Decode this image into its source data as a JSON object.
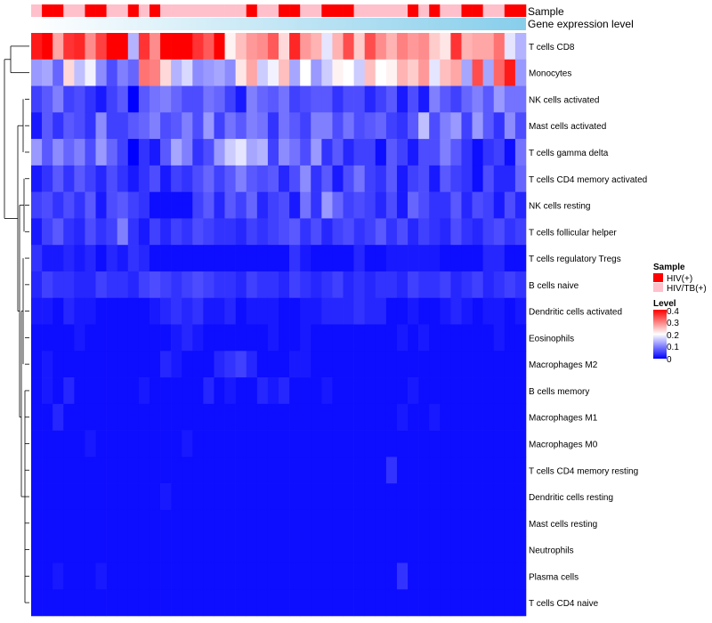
{
  "chart_data": {
    "type": "heatmap",
    "title": "",
    "annotation_rows": [
      "Sample",
      "Gene expression level"
    ],
    "rows": [
      "T cells CD8",
      "Monocytes",
      "NK cells activated",
      "Mast cells activated",
      "T cells gamma delta",
      "T cells CD4 memory activated",
      "NK cells resting",
      "T cells follicular helper",
      "T cells regulatory  Tregs",
      "B cells naive",
      "Dendritic cells activated",
      "Eosinophils",
      "Macrophages M2",
      "B cells memory",
      "Macrophages M1",
      "Macrophages M0",
      "T cells CD4 memory resting",
      "Dendritic cells resting",
      "Mast cells resting",
      "Neutrophils",
      "Plasma cells",
      "T cells CD4 naive"
    ],
    "n_columns": 46,
    "sample_groups": [
      1,
      0,
      0,
      1,
      1,
      0,
      0,
      1,
      1,
      0,
      1,
      0,
      1,
      1,
      1,
      1,
      1,
      1,
      1,
      1,
      0,
      1,
      1,
      0,
      0,
      1,
      1,
      0,
      0,
      0,
      1,
      1,
      1,
      1,
      1,
      0,
      1,
      0,
      1,
      1,
      0,
      0,
      1,
      1,
      0,
      0
    ],
    "values": [
      [
        0.38,
        0.4,
        0.27,
        0.36,
        0.37,
        0.29,
        0.35,
        0.4,
        0.4,
        0.14,
        0.36,
        0.29,
        0.4,
        0.4,
        0.4,
        0.36,
        0.33,
        0.4,
        0.21,
        0.25,
        0.28,
        0.29,
        0.33,
        0.23,
        0.37,
        0.28,
        0.26,
        0.18,
        0.26,
        0.34,
        0.24,
        0.34,
        0.29,
        0.26,
        0.3,
        0.28,
        0.29,
        0.24,
        0.22,
        0.36,
        0.26,
        0.27,
        0.27,
        0.31,
        0.18,
        0.14
      ],
      [
        0.12,
        0.13,
        0.08,
        0.23,
        0.15,
        0.19,
        0.11,
        0.06,
        0.1,
        0.08,
        0.31,
        0.3,
        0.23,
        0.14,
        0.17,
        0.11,
        0.12,
        0.13,
        0.11,
        0.22,
        0.27,
        0.16,
        0.19,
        0.25,
        0.13,
        0.2,
        0.12,
        0.16,
        0.21,
        0.2,
        0.16,
        0.25,
        0.2,
        0.21,
        0.26,
        0.24,
        0.28,
        0.18,
        0.25,
        0.27,
        0.13,
        0.34,
        0.13,
        0.32,
        0.38,
        0.12
      ],
      [
        0.05,
        0.07,
        0.1,
        0.05,
        0.06,
        0.04,
        0.02,
        0.05,
        0.07,
        0.0,
        0.07,
        0.09,
        0.1,
        0.08,
        0.06,
        0.06,
        0.09,
        0.08,
        0.05,
        0.02,
        0.1,
        0.08,
        0.07,
        0.09,
        0.05,
        0.06,
        0.07,
        0.07,
        0.04,
        0.06,
        0.06,
        0.03,
        0.05,
        0.07,
        0.02,
        0.06,
        0.02,
        0.1,
        0.07,
        0.05,
        0.08,
        0.1,
        0.07,
        0.12,
        0.09,
        0.09
      ],
      [
        0.02,
        0.07,
        0.04,
        0.07,
        0.06,
        0.04,
        0.11,
        0.05,
        0.05,
        0.07,
        0.08,
        0.1,
        0.06,
        0.07,
        0.1,
        0.06,
        0.12,
        0.05,
        0.09,
        0.07,
        0.1,
        0.09,
        0.04,
        0.09,
        0.07,
        0.05,
        0.1,
        0.1,
        0.06,
        0.09,
        0.06,
        0.07,
        0.08,
        0.05,
        0.04,
        0.07,
        0.15,
        0.06,
        0.1,
        0.12,
        0.05,
        0.12,
        0.07,
        0.04,
        0.11,
        0.06
      ],
      [
        0.12,
        0.07,
        0.11,
        0.08,
        0.1,
        0.06,
        0.12,
        0.08,
        0.05,
        0.0,
        0.04,
        0.02,
        0.07,
        0.13,
        0.1,
        0.04,
        0.06,
        0.12,
        0.16,
        0.18,
        0.13,
        0.14,
        0.05,
        0.11,
        0.09,
        0.06,
        0.12,
        0.04,
        0.07,
        0.03,
        0.05,
        0.05,
        0.01,
        0.07,
        0.05,
        0.02,
        0.06,
        0.06,
        0.1,
        0.07,
        0.04,
        0.01,
        0.04,
        0.05,
        0.01,
        0.09
      ],
      [
        0.02,
        0.04,
        0.07,
        0.04,
        0.07,
        0.05,
        0.03,
        0.06,
        0.04,
        0.02,
        0.04,
        0.06,
        0.02,
        0.05,
        0.04,
        0.06,
        0.08,
        0.05,
        0.07,
        0.1,
        0.07,
        0.06,
        0.07,
        0.03,
        0.06,
        0.11,
        0.04,
        0.07,
        0.02,
        0.06,
        0.09,
        0.05,
        0.04,
        0.07,
        0.02,
        0.05,
        0.06,
        0.02,
        0.07,
        0.05,
        0.04,
        0.01,
        0.06,
        0.03,
        0.03,
        0.08
      ],
      [
        0.05,
        0.06,
        0.04,
        0.06,
        0.04,
        0.07,
        0.02,
        0.06,
        0.07,
        0.05,
        0.04,
        0.01,
        0.01,
        0.01,
        0.01,
        0.05,
        0.07,
        0.03,
        0.07,
        0.05,
        0.08,
        0.03,
        0.05,
        0.06,
        0.02,
        0.09,
        0.04,
        0.12,
        0.08,
        0.05,
        0.06,
        0.05,
        0.03,
        0.06,
        0.02,
        0.08,
        0.06,
        0.04,
        0.04,
        0.07,
        0.03,
        0.06,
        0.05,
        0.02,
        0.06,
        0.03
      ],
      [
        0.02,
        0.05,
        0.07,
        0.04,
        0.03,
        0.06,
        0.04,
        0.05,
        0.1,
        0.04,
        0.02,
        0.05,
        0.03,
        0.05,
        0.04,
        0.06,
        0.05,
        0.04,
        0.04,
        0.03,
        0.05,
        0.04,
        0.05,
        0.06,
        0.07,
        0.04,
        0.06,
        0.03,
        0.05,
        0.06,
        0.04,
        0.05,
        0.07,
        0.04,
        0.06,
        0.03,
        0.05,
        0.04,
        0.03,
        0.06,
        0.04,
        0.03,
        0.05,
        0.06,
        0.04,
        0.05
      ],
      [
        0.04,
        0.02,
        0.02,
        0.03,
        0.02,
        0.03,
        0.01,
        0.03,
        0.02,
        0.04,
        0.03,
        0.01,
        0.01,
        0.01,
        0.01,
        0.01,
        0.01,
        0.01,
        0.01,
        0.01,
        0.01,
        0.01,
        0.01,
        0.01,
        0.04,
        0.02,
        0.01,
        0.01,
        0.01,
        0.01,
        0.03,
        0.01,
        0.01,
        0.02,
        0.02,
        0.02,
        0.02,
        0.02,
        0.01,
        0.01,
        0.01,
        0.01,
        0.03,
        0.03,
        0.01,
        0.01
      ],
      [
        0.03,
        0.05,
        0.04,
        0.04,
        0.03,
        0.03,
        0.05,
        0.04,
        0.04,
        0.03,
        0.05,
        0.06,
        0.05,
        0.04,
        0.05,
        0.06,
        0.05,
        0.04,
        0.04,
        0.03,
        0.05,
        0.04,
        0.04,
        0.03,
        0.05,
        0.04,
        0.03,
        0.04,
        0.05,
        0.03,
        0.04,
        0.03,
        0.04,
        0.04,
        0.03,
        0.05,
        0.04,
        0.04,
        0.05,
        0.03,
        0.04,
        0.05,
        0.03,
        0.04,
        0.05,
        0.04
      ],
      [
        0.02,
        0.02,
        0.01,
        0.03,
        0.02,
        0.02,
        0.01,
        0.01,
        0.01,
        0.01,
        0.01,
        0.02,
        0.03,
        0.04,
        0.03,
        0.04,
        0.02,
        0.02,
        0.03,
        0.01,
        0.02,
        0.02,
        0.02,
        0.01,
        0.01,
        0.02,
        0.02,
        0.03,
        0.03,
        0.03,
        0.04,
        0.03,
        0.03,
        0.01,
        0.01,
        0.02,
        0.01,
        0.01,
        0.02,
        0.03,
        0.02,
        0.01,
        0.02,
        0.02,
        0.01,
        0.02
      ],
      [
        0.01,
        0.01,
        0.01,
        0.01,
        0.02,
        0.01,
        0.01,
        0.01,
        0.01,
        0.01,
        0.01,
        0.01,
        0.01,
        0.02,
        0.03,
        0.02,
        0.01,
        0.01,
        0.01,
        0.01,
        0.01,
        0.01,
        0.02,
        0.01,
        0.01,
        0.02,
        0.01,
        0.01,
        0.01,
        0.01,
        0.01,
        0.01,
        0.01,
        0.01,
        0.02,
        0.01,
        0.02,
        0.01,
        0.01,
        0.01,
        0.01,
        0.01,
        0.01,
        0.02,
        0.01,
        0.01
      ],
      [
        0.01,
        0.02,
        0.01,
        0.01,
        0.01,
        0.01,
        0.01,
        0.01,
        0.01,
        0.01,
        0.01,
        0.01,
        0.03,
        0.02,
        0.01,
        0.01,
        0.01,
        0.03,
        0.04,
        0.05,
        0.03,
        0.01,
        0.01,
        0.01,
        0.02,
        0.02,
        0.01,
        0.01,
        0.01,
        0.01,
        0.01,
        0.01,
        0.01,
        0.01,
        0.01,
        0.01,
        0.01,
        0.01,
        0.01,
        0.01,
        0.01,
        0.01,
        0.01,
        0.01,
        0.01,
        0.01
      ],
      [
        0.01,
        0.02,
        0.01,
        0.03,
        0.01,
        0.01,
        0.01,
        0.01,
        0.01,
        0.01,
        0.02,
        0.01,
        0.01,
        0.01,
        0.01,
        0.01,
        0.03,
        0.01,
        0.02,
        0.01,
        0.01,
        0.03,
        0.02,
        0.03,
        0.01,
        0.01,
        0.01,
        0.02,
        0.01,
        0.01,
        0.01,
        0.01,
        0.01,
        0.01,
        0.01,
        0.02,
        0.01,
        0.01,
        0.01,
        0.01,
        0.01,
        0.01,
        0.01,
        0.01,
        0.01,
        0.01
      ],
      [
        0.01,
        0.01,
        0.03,
        0.01,
        0.01,
        0.01,
        0.01,
        0.01,
        0.01,
        0.01,
        0.01,
        0.01,
        0.01,
        0.01,
        0.01,
        0.01,
        0.01,
        0.01,
        0.01,
        0.01,
        0.01,
        0.01,
        0.01,
        0.01,
        0.01,
        0.01,
        0.01,
        0.01,
        0.01,
        0.01,
        0.01,
        0.01,
        0.01,
        0.01,
        0.02,
        0.01,
        0.01,
        0.02,
        0.01,
        0.01,
        0.01,
        0.01,
        0.01,
        0.01,
        0.01,
        0.01
      ],
      [
        0.01,
        0.01,
        0.01,
        0.01,
        0.01,
        0.02,
        0.01,
        0.01,
        0.01,
        0.01,
        0.01,
        0.01,
        0.01,
        0.01,
        0.02,
        0.01,
        0.01,
        0.01,
        0.01,
        0.01,
        0.01,
        0.01,
        0.01,
        0.01,
        0.01,
        0.01,
        0.01,
        0.01,
        0.01,
        0.01,
        0.01,
        0.01,
        0.01,
        0.01,
        0.01,
        0.01,
        0.01,
        0.01,
        0.01,
        0.01,
        0.01,
        0.01,
        0.01,
        0.01,
        0.01,
        0.01
      ],
      [
        0.01,
        0.01,
        0.01,
        0.01,
        0.01,
        0.01,
        0.01,
        0.01,
        0.01,
        0.01,
        0.01,
        0.01,
        0.01,
        0.01,
        0.01,
        0.01,
        0.01,
        0.01,
        0.01,
        0.01,
        0.01,
        0.01,
        0.01,
        0.01,
        0.01,
        0.01,
        0.01,
        0.01,
        0.01,
        0.01,
        0.01,
        0.01,
        0.01,
        0.04,
        0.01,
        0.01,
        0.01,
        0.01,
        0.01,
        0.01,
        0.01,
        0.01,
        0.01,
        0.01,
        0.01,
        0.01
      ],
      [
        0.01,
        0.01,
        0.01,
        0.01,
        0.01,
        0.01,
        0.01,
        0.01,
        0.01,
        0.01,
        0.01,
        0.01,
        0.02,
        0.01,
        0.01,
        0.01,
        0.01,
        0.01,
        0.01,
        0.01,
        0.01,
        0.01,
        0.01,
        0.01,
        0.01,
        0.01,
        0.01,
        0.01,
        0.01,
        0.01,
        0.01,
        0.01,
        0.01,
        0.01,
        0.01,
        0.01,
        0.01,
        0.01,
        0.01,
        0.01,
        0.01,
        0.01,
        0.01,
        0.01,
        0.01,
        0.01
      ],
      [
        0.01,
        0.01,
        0.01,
        0.01,
        0.01,
        0.01,
        0.01,
        0.01,
        0.01,
        0.01,
        0.01,
        0.01,
        0.01,
        0.01,
        0.01,
        0.01,
        0.01,
        0.01,
        0.01,
        0.01,
        0.01,
        0.01,
        0.01,
        0.01,
        0.01,
        0.01,
        0.01,
        0.01,
        0.01,
        0.01,
        0.01,
        0.01,
        0.01,
        0.01,
        0.01,
        0.01,
        0.01,
        0.01,
        0.01,
        0.01,
        0.01,
        0.01,
        0.01,
        0.01,
        0.01,
        0.01
      ],
      [
        0.01,
        0.01,
        0.01,
        0.01,
        0.01,
        0.01,
        0.01,
        0.01,
        0.01,
        0.01,
        0.01,
        0.01,
        0.01,
        0.01,
        0.01,
        0.01,
        0.01,
        0.01,
        0.01,
        0.01,
        0.01,
        0.01,
        0.01,
        0.01,
        0.01,
        0.01,
        0.01,
        0.01,
        0.01,
        0.01,
        0.01,
        0.01,
        0.01,
        0.01,
        0.01,
        0.01,
        0.01,
        0.01,
        0.01,
        0.01,
        0.01,
        0.01,
        0.01,
        0.01,
        0.01,
        0.01
      ],
      [
        0.01,
        0.01,
        0.02,
        0.01,
        0.01,
        0.01,
        0.02,
        0.01,
        0.01,
        0.01,
        0.01,
        0.01,
        0.01,
        0.01,
        0.01,
        0.01,
        0.01,
        0.01,
        0.01,
        0.01,
        0.01,
        0.01,
        0.01,
        0.01,
        0.01,
        0.01,
        0.01,
        0.01,
        0.01,
        0.01,
        0.01,
        0.01,
        0.01,
        0.01,
        0.04,
        0.01,
        0.01,
        0.01,
        0.01,
        0.01,
        0.01,
        0.01,
        0.01,
        0.01,
        0.01,
        0.01
      ],
      [
        0.01,
        0.01,
        0.01,
        0.01,
        0.01,
        0.01,
        0.01,
        0.01,
        0.01,
        0.01,
        0.01,
        0.01,
        0.01,
        0.01,
        0.01,
        0.01,
        0.01,
        0.01,
        0.01,
        0.01,
        0.01,
        0.01,
        0.01,
        0.01,
        0.01,
        0.01,
        0.01,
        0.01,
        0.01,
        0.01,
        0.01,
        0.01,
        0.01,
        0.01,
        0.01,
        0.01,
        0.01,
        0.01,
        0.01,
        0.01,
        0.01,
        0.01,
        0.01,
        0.01,
        0.01,
        0.01
      ]
    ],
    "value_range": [
      0,
      0.4
    ],
    "legend": {
      "sample_title": "Sample",
      "sample_entries": [
        {
          "label": "HIV(+)",
          "color": "#ff0000"
        },
        {
          "label": "HIV/TB(+)",
          "color": "#ffc0cb"
        }
      ],
      "level_title": "Level",
      "level_ticks": [
        "0.4",
        "0.3",
        "0.2",
        "0.1",
        "0"
      ],
      "level_tick_values": [
        0.4,
        0.3,
        0.2,
        0.1,
        0
      ]
    },
    "colors": {
      "low": "#0000ff",
      "mid": "#ffffff",
      "high": "#ff0000",
      "gene_expr_bar": "#87ceeb"
    }
  }
}
